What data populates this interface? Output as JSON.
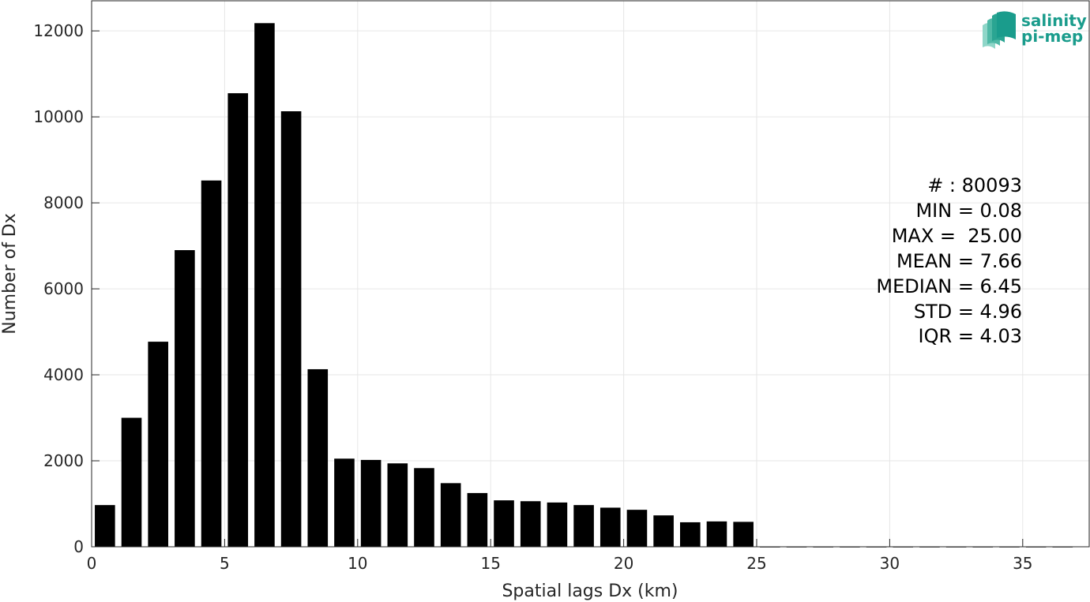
{
  "chart_data": {
    "type": "bar",
    "title": "",
    "xlabel": "Spatial lags Dx (km)",
    "ylabel": "Number of Dx",
    "xlim": [
      0,
      37.5
    ],
    "ylim": [
      0,
      12700
    ],
    "xticks": [
      0,
      5,
      10,
      15,
      20,
      25,
      30,
      35
    ],
    "yticks": [
      0,
      2000,
      4000,
      6000,
      8000,
      10000,
      12000
    ],
    "grid": true,
    "bar_color": "#000000",
    "bin_width": 1,
    "x": [
      0.5,
      1.5,
      2.5,
      3.5,
      4.5,
      5.5,
      6.5,
      7.5,
      8.5,
      9.5,
      10.5,
      11.5,
      12.5,
      13.5,
      14.5,
      15.5,
      16.5,
      17.5,
      18.5,
      19.5,
      20.5,
      21.5,
      22.5,
      23.5,
      24.5,
      25.5,
      26.5,
      27.5,
      28.5,
      29.5,
      30.5,
      31.5,
      32.5,
      33.5,
      34.5,
      35.5,
      36.5
    ],
    "values": [
      970,
      3000,
      4770,
      6900,
      8520,
      10550,
      12180,
      10130,
      4130,
      2050,
      2020,
      1940,
      1830,
      1480,
      1250,
      1080,
      1060,
      1030,
      970,
      910,
      860,
      730,
      570,
      590,
      580,
      0,
      0,
      0,
      0,
      0,
      0,
      0,
      0,
      0,
      0,
      0,
      0
    ],
    "stats": [
      "# : 80093",
      "MIN = 0.08",
      "MAX =  25.00",
      "MEAN = 7.66",
      "MEDIAN = 6.45",
      "STD = 4.96",
      "IQR = 4.03"
    ]
  },
  "logo": {
    "line1": "salinity",
    "line2": "pi-mep",
    "color": "#1a9c8c",
    "icon": "wave-layers-icon"
  }
}
